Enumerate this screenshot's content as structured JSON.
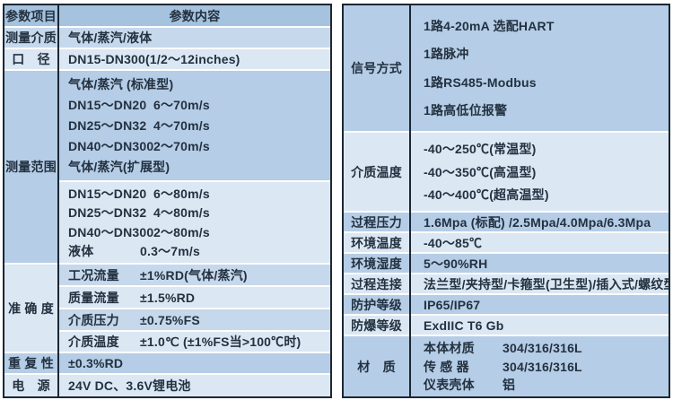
{
  "colors": {
    "outer_border": "#1c2733",
    "header_bg": "#a5c2de",
    "band_dark": "#b5cde6",
    "band_mid": "#c6d8eb",
    "band_light": "#dbe7f3",
    "row_separator": "#fdfdfd",
    "text": "#233140"
  },
  "left": {
    "header": {
      "label": "参数项目",
      "content": "参数内容"
    },
    "r_medium": {
      "label": "测量介质",
      "content": "气体/蒸汽/液体"
    },
    "r_diameter": {
      "label": "口　径",
      "content": "DN15-DN300(1/2～12inches)"
    },
    "r_range": {
      "label": "测量范围",
      "band_a": {
        "l1": "气体/蒸汽 (标准型)",
        "l2n": "DN15～DN20",
        "l2v": "6～70m/s",
        "l3n": "DN25～DN32",
        "l3v": "4～70m/s",
        "l4n": "DN40～DN300",
        "l4v": "2～70m/s",
        "l5": "气体/蒸汽(扩展型)"
      },
      "band_b": {
        "l1n": "DN15～DN20",
        "l1v": "6～80m/s",
        "l2n": "DN25～DN32",
        "l2v": "4～80m/s",
        "l3n": "DN40～DN300",
        "l3v": "2～80m/s",
        "l4n": "液体",
        "l4v": "0.3～7m/s"
      }
    },
    "r_accuracy": {
      "label": "准 确 度",
      "rows": [
        {
          "name": "工况流量",
          "value": "±1%RD(气体/蒸汽)"
        },
        {
          "name": "质量流量",
          "value": "±1.5%RD"
        },
        {
          "name": "介质压力",
          "value": "±0.75%FS"
        },
        {
          "name": "介质温度",
          "value": "±1.0℃ (±1%FS当>100℃时)"
        }
      ]
    },
    "r_repeat": {
      "label": "重 复 性",
      "content": "±0.3%RD"
    },
    "r_power": {
      "label": "电　源",
      "content": "24V DC、3.6V锂电池"
    }
  },
  "right": {
    "r_signal": {
      "label": "信号方式",
      "lines": [
        "1路4-20mA 选配HART",
        "1路脉冲",
        "1路RS485-Modbus",
        "1路高低位报警"
      ]
    },
    "r_mtemp": {
      "label": "介质温度",
      "lines": [
        "-40～250℃(常温型)",
        "-40～350℃(高温型)",
        "-40～400℃(超高温型)"
      ]
    },
    "r_pressure": {
      "label": "过程压力",
      "content": "1.6Mpa (标配) /2.5Mpa/4.0Mpa/6.3Mpa"
    },
    "r_atemp": {
      "label": "环境温度",
      "content": "-40～85℃"
    },
    "r_humidity": {
      "label": "环境湿度",
      "content": "5～90%RH"
    },
    "r_connection": {
      "label": "过程连接",
      "content": "法兰型/夹持型/卡箍型(卫生型)/插入式/螺纹型"
    },
    "r_ip": {
      "label": "防护等级",
      "content": "IP65/IP67"
    },
    "r_ex": {
      "label": "防爆等级",
      "content": "ExdIIC T6 Gb"
    },
    "r_material": {
      "label": "材　质",
      "rows": [
        {
          "name": "本体材质",
          "value": "304/316/316L"
        },
        {
          "name": "传 感 器",
          "value": "304/316/316L"
        },
        {
          "name": "仪表壳体",
          "value": "铝"
        }
      ]
    }
  }
}
